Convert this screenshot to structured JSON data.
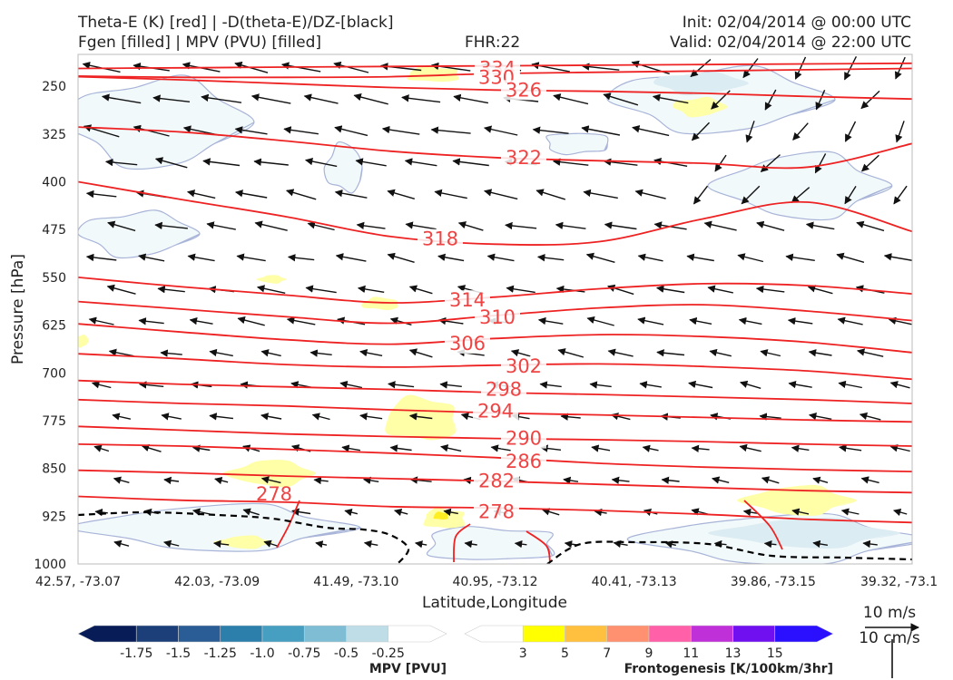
{
  "header": {
    "title_line1": "Theta-E (K) [red] | -D(theta-E)/DZ-[black]",
    "title_line2": "Fgen [filled] | MPV (PVU) [filled]",
    "fhr": "FHR:22",
    "init": "Init: 02/04/2014 @ 00:00 UTC",
    "valid": "Valid: 02/04/2014 @ 22:00 UTC"
  },
  "chart_data": {
    "type": "cross-section",
    "xlabel": "Latitude,Longitude",
    "ylabel": "Pressure [hPa]",
    "ylim": [
      1000,
      200
    ],
    "x_ticks": [
      "42.57, -73.07",
      "42.03, -73.09",
      "41.49, -73.10",
      "40.95, -73.12",
      "40.41, -73.13",
      "39.86, -73.15",
      "39.32, -73.1"
    ],
    "y_ticks": [
      250,
      325,
      400,
      475,
      550,
      625,
      700,
      775,
      850,
      925,
      1000
    ],
    "theta_e_color": "#ee2222",
    "dthetae_color": "#000000",
    "theta_e_contours": [
      {
        "value": "334",
        "level": 334,
        "pressure": [
          [
            0,
            222
          ],
          [
            1,
            221
          ],
          [
            2,
            220
          ],
          [
            3,
            219
          ],
          [
            4,
            218
          ],
          [
            5,
            217
          ],
          [
            6,
            216
          ],
          [
            7,
            215
          ],
          [
            8,
            214
          ]
        ]
      },
      {
        "value": "330",
        "level": 330,
        "pressure": [
          [
            0,
            234
          ],
          [
            1,
            236
          ],
          [
            2,
            236
          ],
          [
            3,
            235
          ],
          [
            4,
            230
          ],
          [
            5,
            228
          ],
          [
            6,
            226
          ],
          [
            7,
            224
          ],
          [
            8,
            222
          ]
        ]
      },
      {
        "value": "326",
        "level": 326,
        "pressure": [
          [
            0,
            235
          ],
          [
            1,
            240
          ],
          [
            2,
            246
          ],
          [
            3,
            252
          ],
          [
            4,
            256
          ],
          [
            5,
            258
          ],
          [
            6,
            261
          ],
          [
            7,
            266
          ],
          [
            8,
            270
          ]
        ]
      },
      {
        "value": "322",
        "level": 322,
        "pressure": [
          [
            0,
            314
          ],
          [
            1,
            322
          ],
          [
            2,
            336
          ],
          [
            3,
            352
          ],
          [
            4,
            362
          ],
          [
            5,
            367
          ],
          [
            6,
            371
          ],
          [
            7,
            377
          ],
          [
            8,
            340
          ]
        ]
      },
      {
        "value": "318",
        "level": 318,
        "pressure": [
          [
            0,
            400
          ],
          [
            1,
            428
          ],
          [
            2,
            455
          ],
          [
            3,
            486
          ],
          [
            4,
            498
          ],
          [
            5,
            494
          ],
          [
            6,
            458
          ],
          [
            7,
            432
          ],
          [
            8,
            478
          ]
        ]
      },
      {
        "value": "314",
        "level": 314,
        "pressure": [
          [
            0,
            550
          ],
          [
            1,
            565
          ],
          [
            2,
            578
          ],
          [
            3,
            590
          ],
          [
            4,
            581
          ],
          [
            5,
            568
          ],
          [
            6,
            560
          ],
          [
            7,
            563
          ],
          [
            8,
            576
          ]
        ]
      },
      {
        "value": "310",
        "level": 310,
        "pressure": [
          [
            0,
            588
          ],
          [
            1,
            600
          ],
          [
            2,
            612
          ],
          [
            3,
            622
          ],
          [
            4,
            610
          ],
          [
            5,
            598
          ],
          [
            6,
            593
          ],
          [
            7,
            603
          ],
          [
            8,
            618
          ]
        ]
      },
      {
        "value": "306",
        "level": 306,
        "pressure": [
          [
            0,
            623
          ],
          [
            1,
            636
          ],
          [
            2,
            648
          ],
          [
            3,
            655
          ],
          [
            4,
            646
          ],
          [
            5,
            640
          ],
          [
            6,
            643
          ],
          [
            7,
            652
          ],
          [
            8,
            668
          ]
        ]
      },
      {
        "value": "302",
        "level": 302,
        "pressure": [
          [
            0,
            670
          ],
          [
            1,
            678
          ],
          [
            2,
            687
          ],
          [
            3,
            691
          ],
          [
            4,
            688
          ],
          [
            5,
            686
          ],
          [
            6,
            690
          ],
          [
            7,
            697
          ],
          [
            8,
            710
          ]
        ]
      },
      {
        "value": "298",
        "level": 298,
        "pressure": [
          [
            0,
            712
          ],
          [
            1,
            718
          ],
          [
            2,
            722
          ],
          [
            3,
            726
          ],
          [
            4,
            731
          ],
          [
            5,
            734
          ],
          [
            6,
            738
          ],
          [
            7,
            742
          ],
          [
            8,
            748
          ]
        ]
      },
      {
        "value": "294",
        "level": 294,
        "pressure": [
          [
            0,
            742
          ],
          [
            1,
            748
          ],
          [
            2,
            752
          ],
          [
            3,
            758
          ],
          [
            4,
            763
          ],
          [
            5,
            766
          ],
          [
            6,
            770
          ],
          [
            7,
            774
          ],
          [
            8,
            777
          ]
        ]
      },
      {
        "value": "290",
        "level": 290,
        "pressure": [
          [
            0,
            784
          ],
          [
            1,
            790
          ],
          [
            2,
            796
          ],
          [
            3,
            800
          ],
          [
            4,
            803
          ],
          [
            5,
            805
          ],
          [
            6,
            808
          ],
          [
            7,
            812
          ],
          [
            8,
            815
          ]
        ]
      },
      {
        "value": "286",
        "level": 286,
        "pressure": [
          [
            0,
            812
          ],
          [
            1,
            815
          ],
          [
            2,
            820
          ],
          [
            3,
            826
          ],
          [
            4,
            833
          ],
          [
            5,
            842
          ],
          [
            6,
            848
          ],
          [
            7,
            852
          ],
          [
            8,
            855
          ]
        ]
      },
      {
        "value": "282",
        "level": 282,
        "pressure": [
          [
            0,
            853
          ],
          [
            1,
            857
          ],
          [
            2,
            862
          ],
          [
            3,
            866
          ],
          [
            4,
            870
          ],
          [
            5,
            875
          ],
          [
            6,
            880
          ],
          [
            7,
            885
          ],
          [
            8,
            888
          ]
        ]
      },
      {
        "value": "278",
        "level": 278,
        "pressure": [
          [
            0,
            894
          ],
          [
            1,
            900
          ],
          [
            2,
            903
          ],
          [
            3,
            910
          ],
          [
            4,
            912
          ],
          [
            5,
            916
          ],
          [
            6,
            922
          ],
          [
            7,
            930
          ],
          [
            8,
            935
          ]
        ]
      }
    ],
    "mpv_colorbar": {
      "label": "MPV [PVU]",
      "ticks": [
        "-1.75",
        "-1.5",
        "-1.25",
        "-1.0",
        "-0.75",
        "-0.5",
        "-0.25"
      ],
      "colors": [
        "#081d58",
        "#1c3f7a",
        "#2a5d95",
        "#2b7faa",
        "#469fc1",
        "#7ebdd3",
        "#bfdde7",
        "#ffffff"
      ]
    },
    "fgen_colorbar": {
      "label": "Frontogenesis [K/100km/3hr]",
      "ticks": [
        "3",
        "5",
        "7",
        "9",
        "11",
        "13",
        "15"
      ],
      "colors": [
        "#ffffff",
        "#ffff00",
        "#ffc040",
        "#ff9070",
        "#ff60a8",
        "#c030d8",
        "#7010f0",
        "#2a10ff"
      ]
    },
    "reference_vector": {
      "top_label": "10 m/s",
      "bottom_label": "10 cm/s"
    }
  }
}
